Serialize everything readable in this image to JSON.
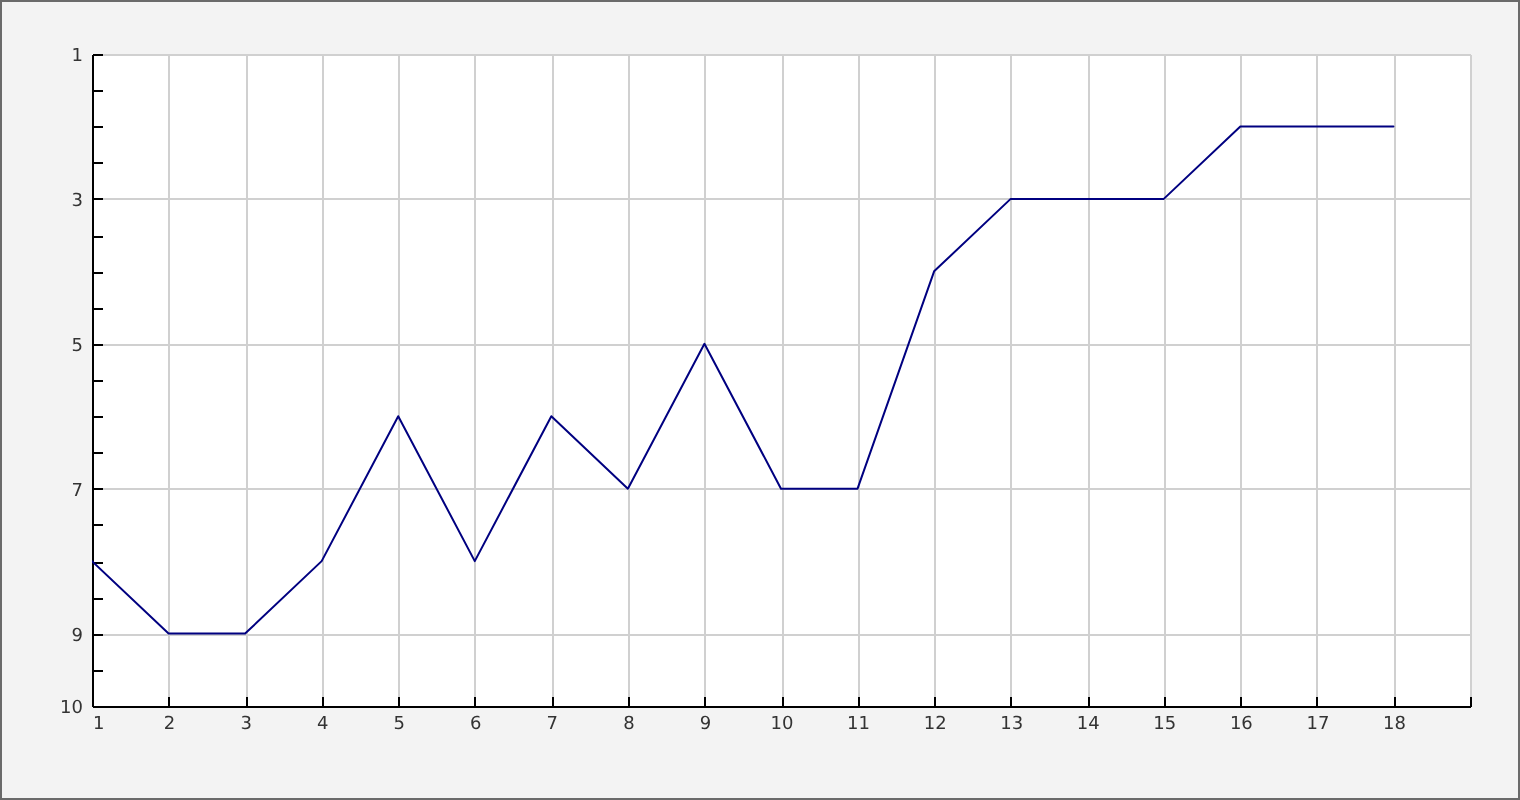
{
  "chart_data": {
    "type": "line",
    "x": [
      1,
      2,
      3,
      4,
      5,
      6,
      7,
      8,
      9,
      10,
      11,
      12,
      13,
      14,
      15,
      16,
      17,
      18
    ],
    "values": [
      8,
      9,
      9,
      8,
      6,
      8,
      6,
      7,
      5,
      7,
      7,
      4,
      3,
      3,
      3,
      2,
      2,
      2
    ],
    "color": "#000080",
    "xlim": [
      1,
      19
    ],
    "xticks": [
      1,
      2,
      3,
      4,
      5,
      6,
      7,
      8,
      9,
      10,
      11,
      12,
      13,
      14,
      15,
      16,
      17,
      18,
      {
        "value": 19,
        "label": null
      }
    ],
    "ylim": [
      10,
      1
    ],
    "yticks": [
      1,
      {
        "value": 1.5,
        "label": null
      },
      {
        "value": 2,
        "label": null
      },
      {
        "value": 2.5,
        "label": null
      },
      3,
      {
        "value": 3.5,
        "label": null
      },
      {
        "value": 4,
        "label": null
      },
      {
        "value": 4.5,
        "label": null
      },
      5,
      {
        "value": 5.5,
        "label": null
      },
      {
        "value": 6,
        "label": null
      },
      {
        "value": 6.5,
        "label": null
      },
      7,
      {
        "value": 7.5,
        "label": null
      },
      {
        "value": 8,
        "label": null
      },
      {
        "value": 8.5,
        "label": null
      },
      9,
      {
        "value": 9.5,
        "label": null
      },
      10
    ],
    "grid": true
  }
}
